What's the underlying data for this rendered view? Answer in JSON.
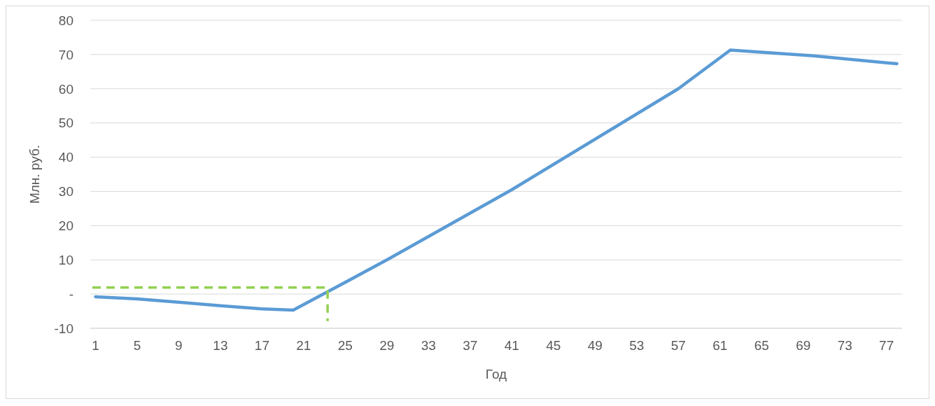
{
  "chart_data": {
    "type": "line",
    "xlabel": "Год",
    "ylabel": "Млн. руб.",
    "grid": "y",
    "marker": "none",
    "xlim": [
      0.5,
      78.5
    ],
    "xticks": [
      1,
      5,
      9,
      13,
      17,
      21,
      25,
      29,
      33,
      37,
      41,
      45,
      49,
      53,
      57,
      61,
      65,
      69,
      73,
      77
    ],
    "ylim": [
      -10,
      80
    ],
    "yticks": [
      -10,
      {
        "value": 0,
        "label": "-"
      },
      10,
      20,
      30,
      40,
      50,
      60,
      70,
      80
    ],
    "series": [
      {
        "color": "#5b9bd5",
        "line_style": "solid",
        "x": [
          1,
          5,
          9,
          13,
          17,
          20,
          24,
          29,
          41,
          57,
          62,
          70,
          78
        ],
        "values": [
          -0.8,
          -1.4,
          -2.4,
          -3.4,
          -4.3,
          -4.7,
          1.8,
          10,
          30.5,
          60,
          71.3,
          69.6,
          67.3
        ]
      },
      {
        "color": "#92d050",
        "line_style": "dashed",
        "x": [
          0.7,
          23.3,
          23.3
        ],
        "values": [
          1.9,
          1.9,
          -7.9
        ]
      }
    ]
  }
}
